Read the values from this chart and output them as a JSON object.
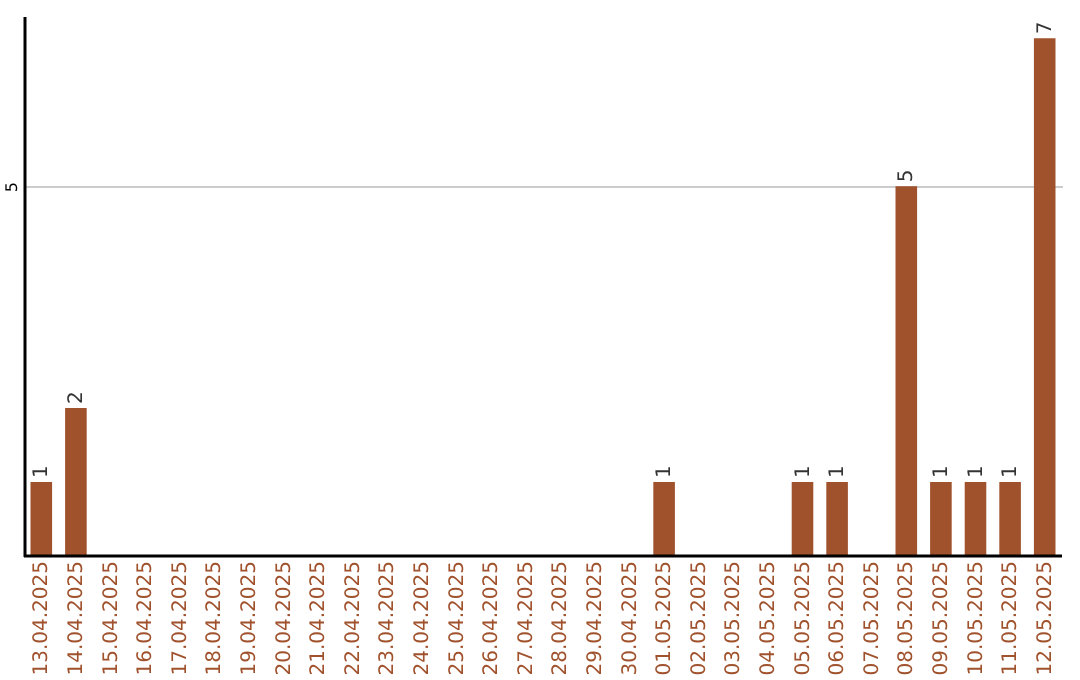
{
  "chart_data": {
    "type": "bar",
    "categories": [
      "13.04.2025",
      "14.04.2025",
      "15.04.2025",
      "16.04.2025",
      "17.04.2025",
      "18.04.2025",
      "19.04.2025",
      "20.04.2025",
      "21.04.2025",
      "22.04.2025",
      "23.04.2025",
      "24.04.2025",
      "25.04.2025",
      "26.04.2025",
      "27.04.2025",
      "28.04.2025",
      "29.04.2025",
      "30.04.2025",
      "01.05.2025",
      "02.05.2025",
      "03.05.2025",
      "04.05.2025",
      "05.05.2025",
      "06.05.2025",
      "07.05.2025",
      "08.05.2025",
      "09.05.2025",
      "10.05.2025",
      "11.05.2025",
      "12.05.2025"
    ],
    "values": [
      1,
      2,
      0,
      0,
      0,
      0,
      0,
      0,
      0,
      0,
      0,
      0,
      0,
      0,
      0,
      0,
      0,
      0,
      1,
      0,
      0,
      0,
      1,
      1,
      0,
      5,
      1,
      1,
      1,
      7
    ],
    "value_labels": [
      "1",
      "2",
      null,
      null,
      null,
      null,
      null,
      null,
      null,
      null,
      null,
      null,
      null,
      null,
      null,
      null,
      null,
      null,
      "1",
      null,
      null,
      null,
      "1",
      "1",
      null,
      "5",
      "1",
      "1",
      "1",
      "7"
    ],
    "color": "#a0522d",
    "ylim": [
      0,
      7.3
    ],
    "yticks": [
      5
    ],
    "grid": "y"
  }
}
